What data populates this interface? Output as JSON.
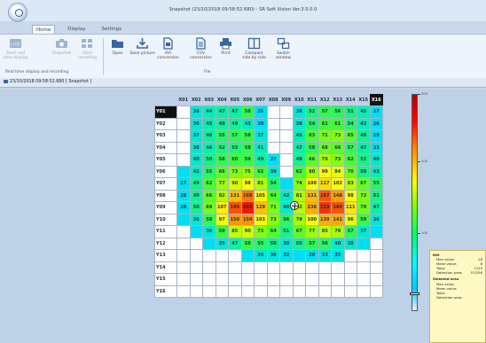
{
  "window": {
    "title": "Snapshot (23/10/2018 09:58:52.680) - SR Soft Vision Ver.3.5.0.0"
  },
  "menu": {
    "tabs": [
      "Home",
      "Display",
      "Settings"
    ]
  },
  "ribbon": {
    "buttons": [
      {
        "label": "Start real time display",
        "icon": "live-icon"
      },
      {
        "label": "Snapshot",
        "icon": "camera-icon"
      },
      {
        "label": "Start recording",
        "icon": "record-icon"
      },
      {
        "label": "Open",
        "icon": "folder-icon"
      },
      {
        "label": "Save picture",
        "icon": "download-icon"
      },
      {
        "label": "AVI conversion",
        "icon": "avi-doc-icon"
      },
      {
        "label": "CSV conversion",
        "icon": "csv-doc-icon"
      },
      {
        "label": "Print",
        "icon": "printer-icon"
      },
      {
        "label": "Compare side by side",
        "icon": "compare-icon"
      },
      {
        "label": "Switch window",
        "icon": "switch-window-icon"
      }
    ],
    "group_labels": [
      "Real time display and recording",
      "File"
    ]
  },
  "document_tab": {
    "label": "23/10/2018 09:58:52.680 [ Snapshot ]"
  },
  "grid": {
    "columns": [
      "X01",
      "X02",
      "X03",
      "X04",
      "X05",
      "X06",
      "X07",
      "X08",
      "X09",
      "X10",
      "X11",
      "X12",
      "X13",
      "X14",
      "X15",
      "X16"
    ],
    "selected_column": "X16",
    "selected_row": "Y01",
    "rows": [
      {
        "label": "Y01",
        "cells": [
          "",
          "36",
          "44",
          "47",
          "47",
          "58",
          "26",
          "",
          "",
          "36",
          "52",
          "57",
          "56",
          "51",
          "45",
          "27"
        ]
      },
      {
        "label": "Y02",
        "cells": [
          "",
          "36",
          "45",
          "48",
          "49",
          "43",
          "30",
          "",
          "",
          "38",
          "54",
          "61",
          "61",
          "54",
          "43",
          "26"
        ]
      },
      {
        "label": "Y03",
        "cells": [
          "",
          "37",
          "48",
          "55",
          "57",
          "58",
          "37",
          "",
          "",
          "45",
          "63",
          "71",
          "73",
          "65",
          "48",
          "29"
        ]
      },
      {
        "label": "Y04",
        "cells": [
          "",
          "38",
          "46",
          "52",
          "53",
          "58",
          "41",
          "",
          "",
          "47",
          "58",
          "68",
          "66",
          "57",
          "47",
          "33"
        ]
      },
      {
        "label": "Y05",
        "cells": [
          "",
          "40",
          "50",
          "58",
          "60",
          "59",
          "49",
          "27",
          "",
          "49",
          "66",
          "79",
          "73",
          "62",
          "51",
          "40"
        ]
      },
      {
        "label": "Y06",
        "cells": [
          "",
          "42",
          "55",
          "66",
          "73",
          "75",
          "62",
          "39",
          "",
          "62",
          "80",
          "99",
          "94",
          "70",
          "50",
          "43"
        ]
      },
      {
        "label": "Y07",
        "cells": [
          "27",
          "49",
          "62",
          "77",
          "90",
          "98",
          "81",
          "54",
          "",
          "74",
          "100",
          "117",
          "102",
          "83",
          "67",
          "55"
        ]
      },
      {
        "label": "Y08",
        "cells": [
          "28",
          "49",
          "66",
          "82",
          "131",
          "168",
          "105",
          "64",
          "42",
          "81",
          "131",
          "187",
          "148",
          "98",
          "72",
          "51"
        ]
      },
      {
        "label": "Y09",
        "cells": [
          "28",
          "50",
          "69",
          "107",
          "189",
          "265",
          "129",
          "71",
          "40",
          "82",
          "138",
          "229",
          "189",
          "111",
          "70",
          "47"
        ]
      },
      {
        "label": "Y10",
        "cells": [
          "",
          "36",
          "58",
          "97",
          "150",
          "154",
          "103",
          "73",
          "56",
          "79",
          "100",
          "139",
          "141",
          "96",
          "59",
          "36"
        ]
      },
      {
        "label": "Y11",
        "cells": [
          "",
          "",
          "36",
          "59",
          "85",
          "90",
          "73",
          "64",
          "51",
          "67",
          "77",
          "85",
          "79",
          "57",
          "37",
          ""
        ]
      },
      {
        "label": "Y12",
        "cells": [
          "",
          "",
          "",
          "35",
          "47",
          "58",
          "55",
          "50",
          "38",
          "50",
          "57",
          "56",
          "40",
          "38",
          "",
          ""
        ]
      },
      {
        "label": "Y13",
        "cells": [
          "",
          "",
          "",
          "",
          "",
          "",
          "36",
          "36",
          "32",
          "",
          "28",
          "33",
          "32",
          "",
          "",
          ""
        ]
      },
      {
        "label": "Y14",
        "cells": [
          "",
          "",
          "",
          "",
          "",
          "",
          "",
          "",
          "",
          "",
          "",
          "",
          "",
          "",
          "",
          ""
        ]
      },
      {
        "label": "Y15",
        "cells": [
          "",
          "",
          "",
          "",
          "",
          "",
          "",
          "",
          "",
          "",
          "",
          "",
          "",
          "",
          "",
          ""
        ]
      },
      {
        "label": "Y16",
        "cells": [
          "",
          "",
          "",
          "",
          "",
          "",
          "",
          "",
          "",
          "",
          "",
          "",
          "",
          "",
          "",
          ""
        ]
      }
    ]
  },
  "heat_fill": {
    "Y01": [
      0,
      0,
      0,
      0,
      0,
      0,
      1,
      0,
      0,
      0,
      0,
      0,
      0,
      0,
      0,
      0
    ],
    "Y02": [
      0,
      0,
      0,
      0,
      0,
      0,
      1,
      0,
      0,
      0,
      0,
      0,
      0,
      0,
      0,
      0
    ],
    "Y03": [
      0,
      1,
      1,
      1,
      1,
      1,
      1,
      0,
      0,
      1,
      1,
      1,
      1,
      1,
      1,
      1
    ],
    "Y04": [
      0,
      1,
      1,
      1,
      1,
      1,
      1,
      0,
      0,
      1,
      1,
      1,
      1,
      1,
      1,
      1
    ],
    "Y05": [
      0,
      1,
      1,
      1,
      1,
      1,
      1,
      1,
      0,
      1,
      1,
      1,
      1,
      1,
      1,
      1
    ],
    "Y06": [
      1,
      1,
      1,
      1,
      1,
      1,
      1,
      1,
      0,
      1,
      1,
      1,
      1,
      1,
      1,
      1
    ],
    "Y07": [
      1,
      1,
      1,
      1,
      1,
      1,
      1,
      1,
      1,
      1,
      1,
      1,
      1,
      1,
      1,
      1
    ],
    "Y08": [
      1,
      1,
      1,
      1,
      1,
      1,
      1,
      1,
      1,
      1,
      1,
      1,
      1,
      1,
      1,
      1
    ],
    "Y09": [
      1,
      1,
      1,
      1,
      1,
      1,
      1,
      1,
      1,
      1,
      1,
      1,
      1,
      1,
      1,
      1
    ],
    "Y10": [
      1,
      1,
      1,
      1,
      1,
      1,
      1,
      1,
      1,
      1,
      1,
      1,
      1,
      1,
      1,
      1
    ],
    "Y11": [
      0,
      1,
      1,
      1,
      1,
      1,
      1,
      1,
      1,
      1,
      1,
      1,
      1,
      1,
      1,
      1
    ],
    "Y12": [
      0,
      0,
      1,
      1,
      1,
      1,
      1,
      1,
      1,
      1,
      1,
      1,
      1,
      1,
      1,
      0
    ],
    "Y13": [
      0,
      0,
      0,
      0,
      0,
      1,
      1,
      1,
      1,
      1,
      1,
      1,
      1,
      0,
      0,
      0
    ],
    "Y14": [
      0,
      0,
      0,
      0,
      0,
      0,
      0,
      0,
      0,
      0,
      0,
      0,
      0,
      0,
      0,
      0
    ],
    "Y15": [
      0,
      0,
      0,
      0,
      0,
      0,
      0,
      0,
      0,
      0,
      0,
      0,
      0,
      0,
      0,
      0
    ],
    "Y16": [
      0,
      0,
      0,
      0,
      0,
      0,
      0,
      0,
      0,
      0,
      0,
      0,
      0,
      0,
      0,
      0
    ]
  },
  "colorbar": {
    "labels": [
      {
        "text": "300",
        "frac": 0.0
      },
      {
        "text": "200",
        "frac": 0.31
      },
      {
        "text": "100",
        "frac": 0.64
      }
    ],
    "marker_frac": 0.92
  },
  "info_panel": {
    "roi_title": "ROI",
    "roi_rows": [
      {
        "label": "Max value:",
        "value": "26"
      },
      {
        "label": "Mean value:",
        "value": "6"
      },
      {
        "label": "Total:",
        "value": "1123"
      },
      {
        "label": "Detection area:",
        "value": "57/256"
      }
    ],
    "sel_title": "Selected area",
    "sel_rows": [
      {
        "label": "Max value:",
        "value": ""
      },
      {
        "label": "Mean value:",
        "value": ""
      },
      {
        "label": "Total:",
        "value": ""
      },
      {
        "label": "Detection area:",
        "value": ""
      }
    ]
  },
  "colors": {
    "selected_header": "#111111",
    "background": "#bfd1e7"
  }
}
